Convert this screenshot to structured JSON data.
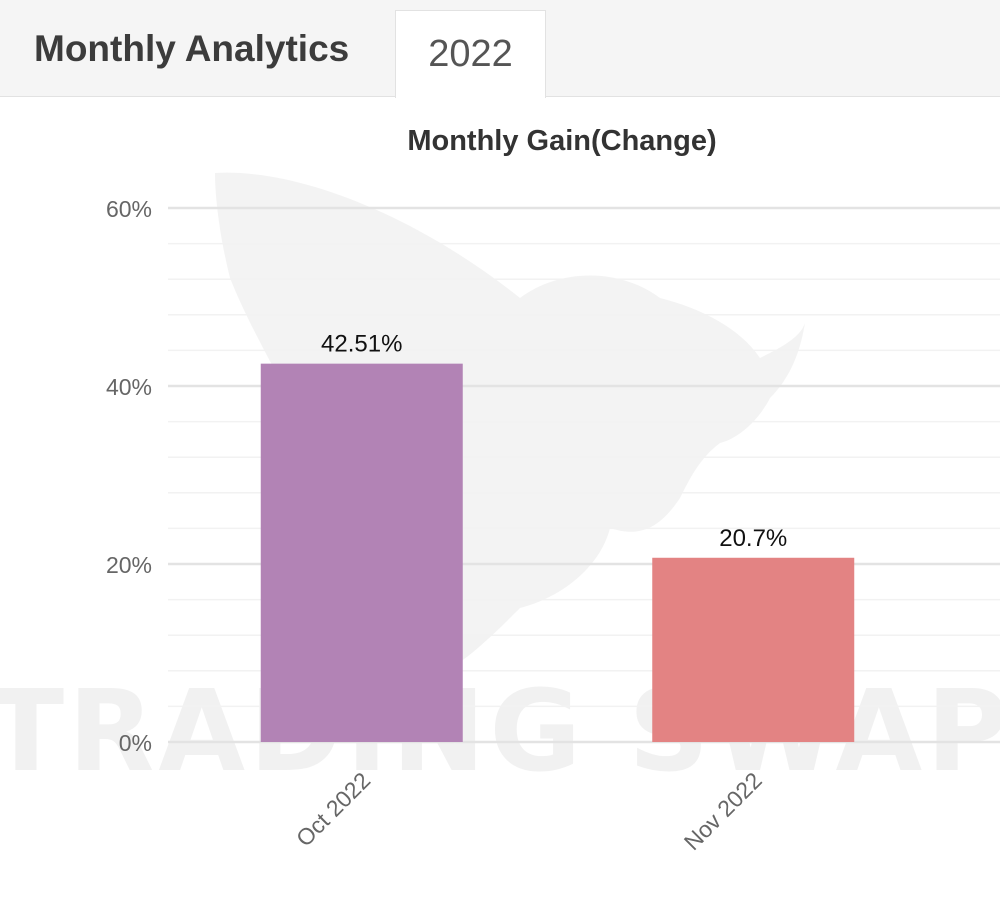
{
  "tabs": {
    "title": "Monthly Analytics",
    "year": "2022"
  },
  "watermark": {
    "text": "TRADING SWAP",
    "icon": "winged-bull-logo"
  },
  "chart_data": {
    "type": "bar",
    "title": "Monthly Gain(Change)",
    "categories": [
      "Oct 2022",
      "Nov 2022"
    ],
    "values": [
      42.51,
      20.7
    ],
    "data_labels": [
      "42.51%",
      "20.7%"
    ],
    "colors": [
      "#b283b5",
      "#e38383"
    ],
    "ylim": [
      0,
      60
    ],
    "yticks": [
      0,
      20,
      40,
      60
    ],
    "ytick_labels": [
      "0%",
      "20%",
      "40%",
      "60%"
    ],
    "grid": true,
    "legend": "none"
  }
}
